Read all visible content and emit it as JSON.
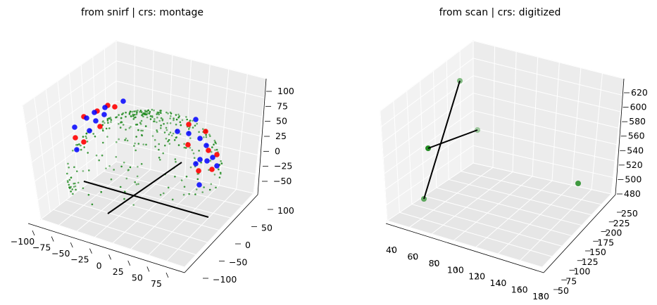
{
  "chart_data": [
    {
      "type": "scatter3d",
      "title": "from snirf | crs: montage",
      "xlabel": "",
      "ylabel": "",
      "zlabel": "",
      "grid": true,
      "x_ticks": [
        "−100",
        "−75",
        "−50",
        "−25",
        "0",
        "25",
        "50",
        "75"
      ],
      "y_ticks": [
        "−100",
        "−50",
        "0",
        "50",
        "100"
      ],
      "z_ticks": [
        "−50",
        "−25",
        "0",
        "25",
        "50",
        "75",
        "100"
      ],
      "series": [
        {
          "marker": "dot",
          "color": "#228b22",
          "note_points": "head-shaped cloud of small digitized points"
        },
        {
          "marker": "circle",
          "color": "#ff0000",
          "points": [
            [
              70,
              -10,
              40
            ],
            [
              72,
              5,
              20
            ],
            [
              75,
              20,
              0
            ],
            [
              78,
              35,
              -20
            ],
            [
              65,
              -30,
              -30
            ],
            [
              60,
              50,
              -40
            ],
            [
              -60,
              -40,
              60
            ],
            [
              -70,
              -20,
              40
            ],
            [
              -75,
              10,
              20
            ],
            [
              -65,
              30,
              60
            ]
          ]
        },
        {
          "marker": "circle",
          "color": "#0000ff",
          "points": [
            [
              68,
              -15,
              30
            ],
            [
              74,
              0,
              10
            ],
            [
              76,
              25,
              -10
            ],
            [
              62,
              -35,
              -40
            ],
            [
              58,
              45,
              -50
            ],
            [
              -55,
              -45,
              70
            ],
            [
              -68,
              -25,
              50
            ],
            [
              -72,
              5,
              30
            ],
            [
              -62,
              35,
              50
            ],
            [
              -50,
              -55,
              80
            ]
          ]
        }
      ],
      "lines_color": "#000000"
    },
    {
      "type": "scatter3d",
      "title": "from scan | crs: digitized",
      "xlabel": "",
      "ylabel": "",
      "zlabel": "",
      "grid": true,
      "x_ticks": [
        "40",
        "60",
        "80",
        "100",
        "120",
        "140",
        "160",
        "180"
      ],
      "y_ticks": [
        "50",
        "75",
        "100",
        "125",
        "150",
        "175",
        "200",
        "225",
        "250"
      ],
      "z_ticks": [
        "480",
        "500",
        "520",
        "540",
        "560",
        "580",
        "600",
        "620"
      ],
      "series": [
        {
          "marker": "circle",
          "color": "#228b22",
          "points": [
            [
              40,
              60,
              540
            ],
            [
              40,
              80,
              580
            ],
            [
              80,
              150,
              560
            ],
            [
              170,
              240,
              490
            ],
            [
              60,
              60,
              485
            ]
          ]
        }
      ],
      "lines_color": "#000000"
    }
  ]
}
